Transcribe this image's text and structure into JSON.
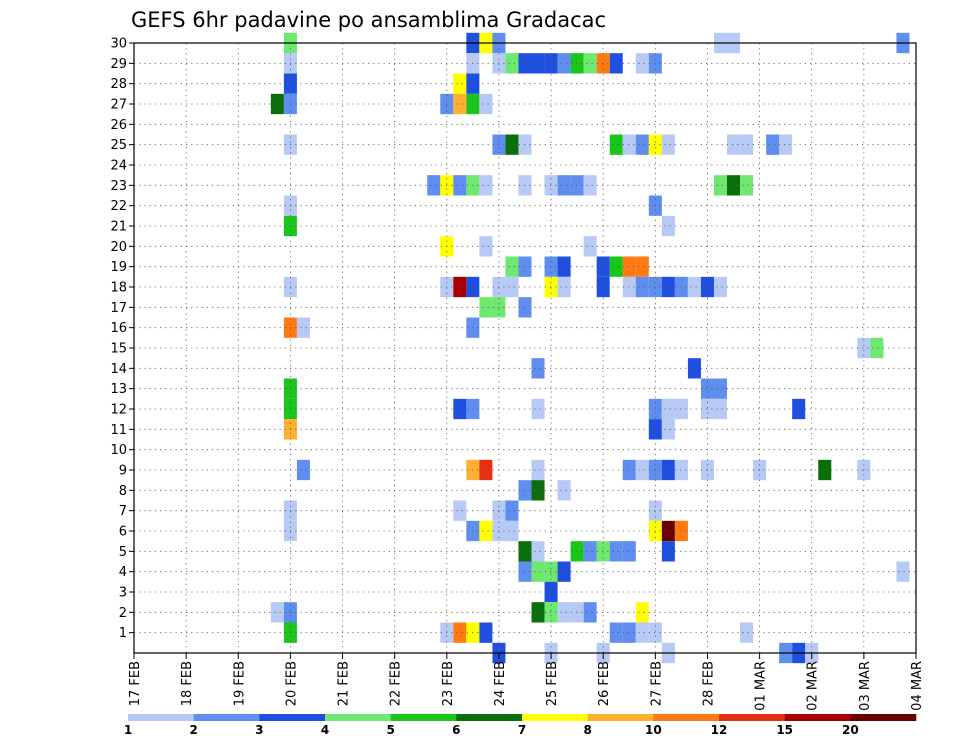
{
  "chart_data": {
    "type": "heatmap",
    "title": "GEFS 6hr padavine po ansamblima Gradacac",
    "xlabel": "",
    "ylabel": "",
    "x_ticks": [
      "17 FEB",
      "18 FEB",
      "19 FEB",
      "20 FEB",
      "21 FEB",
      "22 FEB",
      "23 FEB",
      "24 FEB",
      "25 FEB",
      "26 FEB",
      "27 FEB",
      "28 FEB",
      "01 MAR",
      "02 MAR",
      "03 MAR",
      "04 MAR"
    ],
    "y_ticks": [
      1,
      2,
      3,
      4,
      5,
      6,
      7,
      8,
      9,
      10,
      11,
      12,
      13,
      14,
      15,
      16,
      17,
      18,
      19,
      20,
      21,
      22,
      23,
      24,
      25,
      26,
      27,
      28,
      29,
      30
    ],
    "x_unit": "6-hour steps from 17 FEB 00Z",
    "xlim": [
      0,
      60
    ],
    "ylim": [
      0,
      30
    ],
    "grid": true,
    "legend": {
      "placement": "bottom",
      "labels": [
        "1",
        "2",
        "3",
        "4",
        "5",
        "6",
        "7",
        "8",
        "10",
        "12",
        "15",
        "20"
      ],
      "colors": [
        "#b7c9f5",
        "#5f8ef0",
        "#1f4fe0",
        "#6fe86f",
        "#19c619",
        "#0a6e0a",
        "#ffff00",
        "#ffb030",
        "#ff7a10",
        "#e83010",
        "#a80000",
        "#6a0000"
      ]
    },
    "cells": [
      {
        "member": 30,
        "step": 12,
        "c": 3
      },
      {
        "member": 30,
        "step": 26,
        "c": 2
      },
      {
        "member": 30,
        "step": 27,
        "c": 6
      },
      {
        "member": 30,
        "step": 28,
        "c": 1
      },
      {
        "member": 30,
        "step": 45,
        "c": 0
      },
      {
        "member": 30,
        "step": 46,
        "c": 0
      },
      {
        "member": 30,
        "step": 59,
        "c": 1
      },
      {
        "member": 29,
        "step": 12,
        "c": 0
      },
      {
        "member": 29,
        "step": 26,
        "c": 0
      },
      {
        "member": 29,
        "step": 28,
        "c": 0
      },
      {
        "member": 29,
        "step": 29,
        "c": 3
      },
      {
        "member": 29,
        "step": 30,
        "c": 2
      },
      {
        "member": 29,
        "step": 31,
        "c": 2
      },
      {
        "member": 29,
        "step": 32,
        "c": 2
      },
      {
        "member": 29,
        "step": 33,
        "c": 1
      },
      {
        "member": 29,
        "step": 34,
        "c": 4
      },
      {
        "member": 29,
        "step": 35,
        "c": 3
      },
      {
        "member": 29,
        "step": 36,
        "c": 8
      },
      {
        "member": 29,
        "step": 37,
        "c": 2
      },
      {
        "member": 29,
        "step": 39,
        "c": 0
      },
      {
        "member": 29,
        "step": 40,
        "c": 1
      },
      {
        "member": 28,
        "step": 12,
        "c": 2
      },
      {
        "member": 28,
        "step": 25,
        "c": 6
      },
      {
        "member": 28,
        "step": 26,
        "c": 2
      },
      {
        "member": 27,
        "step": 11,
        "c": 5
      },
      {
        "member": 27,
        "step": 12,
        "c": 1
      },
      {
        "member": 27,
        "step": 24,
        "c": 1
      },
      {
        "member": 27,
        "step": 25,
        "c": 7
      },
      {
        "member": 27,
        "step": 26,
        "c": 4
      },
      {
        "member": 27,
        "step": 27,
        "c": 0
      },
      {
        "member": 25,
        "step": 12,
        "c": 0
      },
      {
        "member": 25,
        "step": 28,
        "c": 1
      },
      {
        "member": 25,
        "step": 29,
        "c": 5
      },
      {
        "member": 25,
        "step": 30,
        "c": 0
      },
      {
        "member": 25,
        "step": 37,
        "c": 4
      },
      {
        "member": 25,
        "step": 38,
        "c": 0
      },
      {
        "member": 25,
        "step": 39,
        "c": 1
      },
      {
        "member": 25,
        "step": 40,
        "c": 6
      },
      {
        "member": 25,
        "step": 41,
        "c": 0
      },
      {
        "member": 25,
        "step": 46,
        "c": 0
      },
      {
        "member": 25,
        "step": 47,
        "c": 0
      },
      {
        "member": 25,
        "step": 49,
        "c": 1
      },
      {
        "member": 25,
        "step": 50,
        "c": 0
      },
      {
        "member": 23,
        "step": 23,
        "c": 1
      },
      {
        "member": 23,
        "step": 24,
        "c": 6
      },
      {
        "member": 23,
        "step": 25,
        "c": 1
      },
      {
        "member": 23,
        "step": 26,
        "c": 3
      },
      {
        "member": 23,
        "step": 27,
        "c": 0
      },
      {
        "member": 23,
        "step": 30,
        "c": 0
      },
      {
        "member": 23,
        "step": 32,
        "c": 0
      },
      {
        "member": 23,
        "step": 33,
        "c": 1
      },
      {
        "member": 23,
        "step": 34,
        "c": 1
      },
      {
        "member": 23,
        "step": 35,
        "c": 0
      },
      {
        "member": 23,
        "step": 45,
        "c": 3
      },
      {
        "member": 23,
        "step": 46,
        "c": 5
      },
      {
        "member": 23,
        "step": 47,
        "c": 3
      },
      {
        "member": 22,
        "step": 12,
        "c": 0
      },
      {
        "member": 22,
        "step": 40,
        "c": 1
      },
      {
        "member": 21,
        "step": 12,
        "c": 4
      },
      {
        "member": 21,
        "step": 41,
        "c": 0
      },
      {
        "member": 20,
        "step": 24,
        "c": 6
      },
      {
        "member": 20,
        "step": 27,
        "c": 0
      },
      {
        "member": 20,
        "step": 35,
        "c": 0
      },
      {
        "member": 19,
        "step": 29,
        "c": 3
      },
      {
        "member": 19,
        "step": 30,
        "c": 1
      },
      {
        "member": 19,
        "step": 32,
        "c": 1
      },
      {
        "member": 19,
        "step": 33,
        "c": 2
      },
      {
        "member": 19,
        "step": 36,
        "c": 2
      },
      {
        "member": 19,
        "step": 37,
        "c": 4
      },
      {
        "member": 19,
        "step": 38,
        "c": 8
      },
      {
        "member": 19,
        "step": 39,
        "c": 8
      },
      {
        "member": 18,
        "step": 12,
        "c": 0
      },
      {
        "member": 18,
        "step": 24,
        "c": 0
      },
      {
        "member": 18,
        "step": 25,
        "c": 10
      },
      {
        "member": 18,
        "step": 26,
        "c": 2
      },
      {
        "member": 18,
        "step": 28,
        "c": 0
      },
      {
        "member": 18,
        "step": 29,
        "c": 0
      },
      {
        "member": 18,
        "step": 32,
        "c": 6
      },
      {
        "member": 18,
        "step": 33,
        "c": 0
      },
      {
        "member": 18,
        "step": 36,
        "c": 2
      },
      {
        "member": 18,
        "step": 38,
        "c": 0
      },
      {
        "member": 18,
        "step": 39,
        "c": 1
      },
      {
        "member": 18,
        "step": 40,
        "c": 1
      },
      {
        "member": 18,
        "step": 41,
        "c": 2
      },
      {
        "member": 18,
        "step": 42,
        "c": 1
      },
      {
        "member": 18,
        "step": 43,
        "c": 0
      },
      {
        "member": 18,
        "step": 44,
        "c": 2
      },
      {
        "member": 18,
        "step": 45,
        "c": 0
      },
      {
        "member": 17,
        "step": 27,
        "c": 3
      },
      {
        "member": 17,
        "step": 28,
        "c": 3
      },
      {
        "member": 17,
        "step": 30,
        "c": 1
      },
      {
        "member": 16,
        "step": 12,
        "c": 8
      },
      {
        "member": 16,
        "step": 13,
        "c": 0
      },
      {
        "member": 16,
        "step": 26,
        "c": 1
      },
      {
        "member": 15,
        "step": 56,
        "c": 0
      },
      {
        "member": 15,
        "step": 57,
        "c": 3
      },
      {
        "member": 14,
        "step": 31,
        "c": 1
      },
      {
        "member": 14,
        "step": 43,
        "c": 2
      },
      {
        "member": 13,
        "step": 12,
        "c": 4
      },
      {
        "member": 13,
        "step": 44,
        "c": 1
      },
      {
        "member": 13,
        "step": 45,
        "c": 1
      },
      {
        "member": 12,
        "step": 12,
        "c": 4
      },
      {
        "member": 12,
        "step": 25,
        "c": 2
      },
      {
        "member": 12,
        "step": 26,
        "c": 1
      },
      {
        "member": 12,
        "step": 31,
        "c": 0
      },
      {
        "member": 12,
        "step": 40,
        "c": 1
      },
      {
        "member": 12,
        "step": 41,
        "c": 0
      },
      {
        "member": 12,
        "step": 42,
        "c": 0
      },
      {
        "member": 12,
        "step": 44,
        "c": 0
      },
      {
        "member": 12,
        "step": 45,
        "c": 0
      },
      {
        "member": 12,
        "step": 51,
        "c": 2
      },
      {
        "member": 11,
        "step": 12,
        "c": 7
      },
      {
        "member": 11,
        "step": 40,
        "c": 2
      },
      {
        "member": 11,
        "step": 41,
        "c": 0
      },
      {
        "member": 9,
        "step": 13,
        "c": 1
      },
      {
        "member": 9,
        "step": 26,
        "c": 7
      },
      {
        "member": 9,
        "step": 27,
        "c": 9
      },
      {
        "member": 9,
        "step": 31,
        "c": 0
      },
      {
        "member": 9,
        "step": 38,
        "c": 1
      },
      {
        "member": 9,
        "step": 39,
        "c": 0
      },
      {
        "member": 9,
        "step": 40,
        "c": 1
      },
      {
        "member": 9,
        "step": 41,
        "c": 2
      },
      {
        "member": 9,
        "step": 42,
        "c": 0
      },
      {
        "member": 9,
        "step": 44,
        "c": 0
      },
      {
        "member": 9,
        "step": 48,
        "c": 0
      },
      {
        "member": 9,
        "step": 53,
        "c": 5
      },
      {
        "member": 9,
        "step": 56,
        "c": 0
      },
      {
        "member": 8,
        "step": 30,
        "c": 1
      },
      {
        "member": 8,
        "step": 31,
        "c": 5
      },
      {
        "member": 8,
        "step": 33,
        "c": 0
      },
      {
        "member": 7,
        "step": 12,
        "c": 0
      },
      {
        "member": 7,
        "step": 25,
        "c": 0
      },
      {
        "member": 7,
        "step": 28,
        "c": 0
      },
      {
        "member": 7,
        "step": 29,
        "c": 1
      },
      {
        "member": 7,
        "step": 40,
        "c": 0
      },
      {
        "member": 6,
        "step": 12,
        "c": 0
      },
      {
        "member": 6,
        "step": 26,
        "c": 1
      },
      {
        "member": 6,
        "step": 27,
        "c": 6
      },
      {
        "member": 6,
        "step": 28,
        "c": 0
      },
      {
        "member": 6,
        "step": 29,
        "c": 0
      },
      {
        "member": 6,
        "step": 40,
        "c": 6
      },
      {
        "member": 6,
        "step": 41,
        "c": 11
      },
      {
        "member": 6,
        "step": 42,
        "c": 8
      },
      {
        "member": 5,
        "step": 30,
        "c": 5
      },
      {
        "member": 5,
        "step": 31,
        "c": 0
      },
      {
        "member": 5,
        "step": 34,
        "c": 4
      },
      {
        "member": 5,
        "step": 35,
        "c": 1
      },
      {
        "member": 5,
        "step": 36,
        "c": 3
      },
      {
        "member": 5,
        "step": 37,
        "c": 1
      },
      {
        "member": 5,
        "step": 38,
        "c": 1
      },
      {
        "member": 5,
        "step": 41,
        "c": 2
      },
      {
        "member": 4,
        "step": 30,
        "c": 1
      },
      {
        "member": 4,
        "step": 31,
        "c": 3
      },
      {
        "member": 4,
        "step": 32,
        "c": 3
      },
      {
        "member": 4,
        "step": 33,
        "c": 2
      },
      {
        "member": 4,
        "step": 59,
        "c": 0
      },
      {
        "member": 3,
        "step": 32,
        "c": 2
      },
      {
        "member": 2,
        "step": 11,
        "c": 0
      },
      {
        "member": 2,
        "step": 12,
        "c": 1
      },
      {
        "member": 2,
        "step": 31,
        "c": 5
      },
      {
        "member": 2,
        "step": 32,
        "c": 3
      },
      {
        "member": 2,
        "step": 33,
        "c": 0
      },
      {
        "member": 2,
        "step": 34,
        "c": 0
      },
      {
        "member": 2,
        "step": 35,
        "c": 1
      },
      {
        "member": 2,
        "step": 39,
        "c": 6
      },
      {
        "member": 1,
        "step": 12,
        "c": 4
      },
      {
        "member": 1,
        "step": 24,
        "c": 0
      },
      {
        "member": 1,
        "step": 25,
        "c": 8
      },
      {
        "member": 1,
        "step": 26,
        "c": 6
      },
      {
        "member": 1,
        "step": 27,
        "c": 2
      },
      {
        "member": 1,
        "step": 37,
        "c": 1
      },
      {
        "member": 1,
        "step": 38,
        "c": 1
      },
      {
        "member": 1,
        "step": 39,
        "c": 0
      },
      {
        "member": 1,
        "step": 40,
        "c": 0
      },
      {
        "member": 1,
        "step": 47,
        "c": 0
      },
      {
        "member": 0,
        "step": 28,
        "c": 2
      },
      {
        "member": 0,
        "step": 32,
        "c": 0
      },
      {
        "member": 0,
        "step": 36,
        "c": 0
      },
      {
        "member": 0,
        "step": 41,
        "c": 0
      },
      {
        "member": 0,
        "step": 50,
        "c": 1
      },
      {
        "member": 0,
        "step": 51,
        "c": 2
      },
      {
        "member": 0,
        "step": 52,
        "c": 0
      }
    ]
  }
}
